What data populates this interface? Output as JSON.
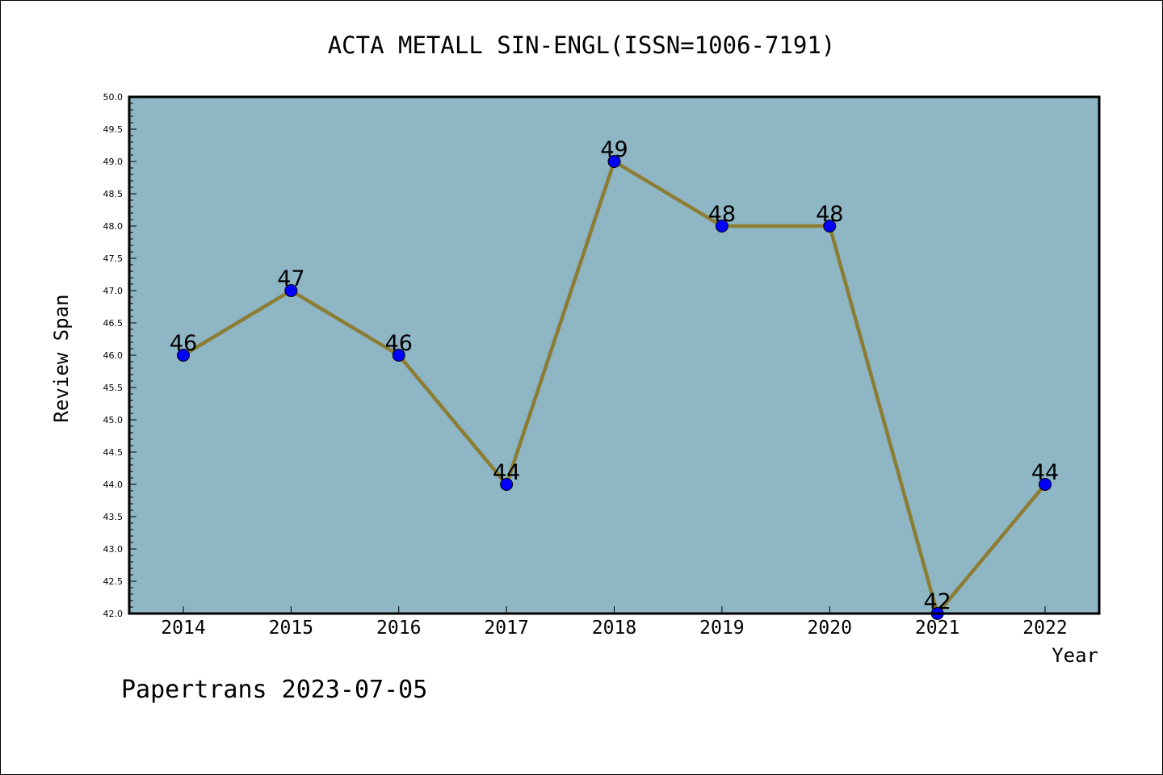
{
  "chart_data": {
    "type": "line",
    "title": "ACTA METALL SIN-ENGL(ISSN=1006-7191)",
    "xlabel": "Year",
    "ylabel": "Review Span",
    "categories": [
      "2014",
      "2015",
      "2016",
      "2017",
      "2018",
      "2019",
      "2020",
      "2021",
      "2022"
    ],
    "series": [
      {
        "values": [
          46,
          47,
          46,
          44,
          49,
          48,
          48,
          42,
          44
        ]
      }
    ],
    "ylim": [
      42.0,
      50.0
    ],
    "y_ticks": [
      "42.0",
      "42.5",
      "43.0",
      "43.5",
      "44.0",
      "44.5",
      "45.0",
      "45.5",
      "46.0",
      "46.5",
      "47.0",
      "47.5",
      "48.0",
      "48.5",
      "49.0",
      "49.5",
      "50.0"
    ],
    "grid": false,
    "data_labels": true,
    "colors": {
      "plot_background": "#8eb6c4",
      "line": "#8c7d35",
      "marker": "#0000ff",
      "axis": "#000000"
    }
  },
  "footer": "Papertrans 2023-07-05"
}
